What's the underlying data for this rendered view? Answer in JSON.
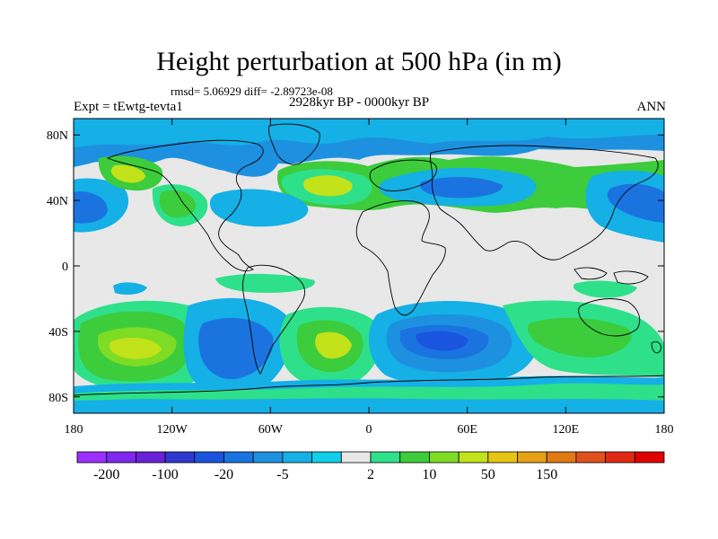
{
  "title": "Height perturbation at 500 hPa (in m)",
  "stats": "rmsd= 5.06929 diff= -2.89723e-08",
  "experiment": "Expt = tEwtg-tevta1",
  "period": "2928kyr BP - 0000kyr BP",
  "season": "ANN",
  "lat_ticks": [
    {
      "label": "80N",
      "value": 80
    },
    {
      "label": "40N",
      "value": 40
    },
    {
      "label": "0",
      "value": 0
    },
    {
      "label": "40S",
      "value": -40
    },
    {
      "label": "80S",
      "value": -80
    }
  ],
  "lon_ticks": [
    {
      "label": "180",
      "value": -180
    },
    {
      "label": "120W",
      "value": -120
    },
    {
      "label": "60W",
      "value": -60
    },
    {
      "label": "0",
      "value": 0
    },
    {
      "label": "60E",
      "value": 60
    },
    {
      "label": "120E",
      "value": 120
    },
    {
      "label": "180",
      "value": 180
    }
  ],
  "colorbar": {
    "colors": [
      "#9b30ff",
      "#7f28ee",
      "#6a21d8",
      "#2f38d0",
      "#1a55e0",
      "#1b73e0",
      "#1d91e0",
      "#14b0e6",
      "#12cfe9",
      "#e8e8e8",
      "#2ee08a",
      "#3ccc3c",
      "#7edc25",
      "#c2e21a",
      "#e6c414",
      "#e6a014",
      "#e07a14",
      "#e0501c",
      "#e02a14",
      "#e00000"
    ],
    "labels": [
      {
        "text": "-200",
        "boundary": 1
      },
      {
        "text": "-100",
        "boundary": 3
      },
      {
        "text": "-20",
        "boundary": 5
      },
      {
        "text": "-5",
        "boundary": 7
      },
      {
        "text": "2",
        "boundary": 10
      },
      {
        "text": "10",
        "boundary": 12
      },
      {
        "text": "50",
        "boundary": 14
      },
      {
        "text": "150",
        "boundary": 16
      }
    ]
  },
  "map_colors": {
    "background": "#e8e8e8",
    "coast": "#000000"
  }
}
